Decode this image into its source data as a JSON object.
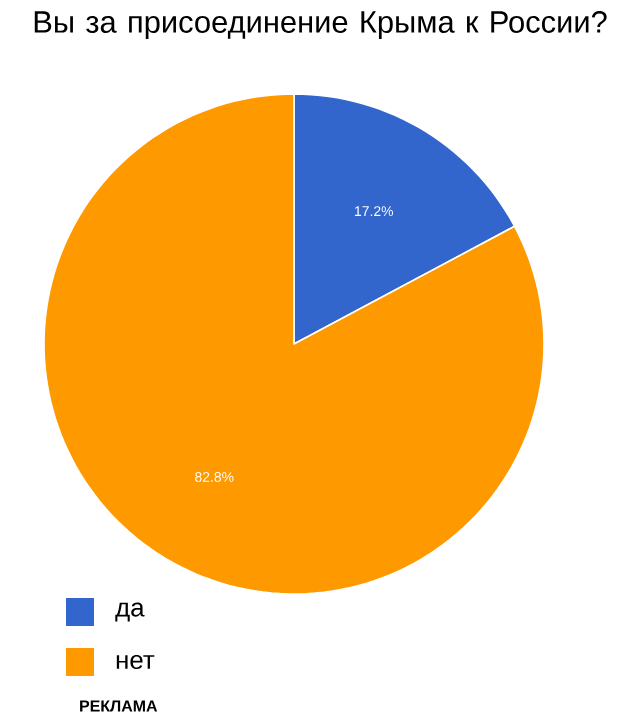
{
  "chart_data": {
    "type": "pie",
    "title": "Вы за присоединение Крыма к России?",
    "categories": [
      "да",
      "нет"
    ],
    "values": [
      17.2,
      82.8
    ],
    "value_labels": [
      "17.2%",
      "82.8%"
    ],
    "colors": [
      "#3366cc",
      "#ff9900"
    ],
    "legend": "bottom left",
    "annotations": [
      "РЕКЛАМА"
    ]
  }
}
